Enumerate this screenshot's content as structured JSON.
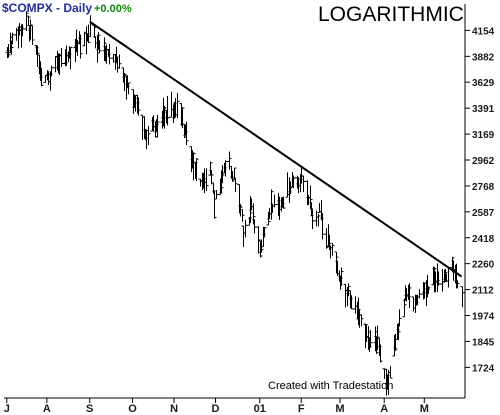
{
  "chart_data": {
    "type": "ohlc",
    "title": "$COMPX - Daily",
    "change": "+0.00%",
    "scale_label": "LOGARITHMIC",
    "credit": "Created with Tradestation",
    "yscale": "log",
    "ylim": [
      1600,
      4450
    ],
    "xlim": [
      "2000-07-01",
      "2001-05-29"
    ],
    "yticks": [
      4154,
      3882,
      3629,
      3391,
      3169,
      2962,
      2768,
      2587,
      2418,
      2260,
      2112,
      1974,
      1845,
      1724
    ],
    "xticks": [
      {
        "label": "J",
        "date": "2000-07-03"
      },
      {
        "label": "A",
        "date": "2000-08-01"
      },
      {
        "label": "S",
        "date": "2000-09-01"
      },
      {
        "label": "O",
        "date": "2000-10-02"
      },
      {
        "label": "N",
        "date": "2000-11-01"
      },
      {
        "label": "D",
        "date": "2000-12-01"
      },
      {
        "label": "01",
        "date": "2001-01-02"
      },
      {
        "label": "F",
        "date": "2001-02-01"
      },
      {
        "label": "M",
        "date": "2001-03-01"
      },
      {
        "label": "A",
        "date": "2001-04-02"
      },
      {
        "label": "M",
        "date": "2001-05-01"
      }
    ],
    "trendline": {
      "start": [
        "2000-09-01",
        4250
      ],
      "end": [
        "2001-05-28",
        2185
      ]
    },
    "anchors": [
      [
        "2000-07-03",
        3960
      ],
      [
        "2000-07-10",
        4050
      ],
      [
        "2000-07-17",
        4250
      ],
      [
        "2000-07-21",
        4150
      ],
      [
        "2000-07-28",
        3700
      ],
      [
        "2000-08-02",
        3650
      ],
      [
        "2000-08-08",
        3840
      ],
      [
        "2000-08-15",
        3880
      ],
      [
        "2000-08-22",
        3980
      ],
      [
        "2000-08-29",
        4080
      ],
      [
        "2000-09-01",
        4230
      ],
      [
        "2000-09-06",
        4000
      ],
      [
        "2000-09-12",
        3900
      ],
      [
        "2000-09-20",
        3850
      ],
      [
        "2000-09-26",
        3650
      ],
      [
        "2000-10-02",
        3500
      ],
      [
        "2000-10-06",
        3400
      ],
      [
        "2000-10-12",
        3150
      ],
      [
        "2000-10-16",
        3300
      ],
      [
        "2000-10-20",
        3200
      ],
      [
        "2000-10-24",
        3350
      ],
      [
        "2000-10-31",
        3400
      ],
      [
        "2000-11-03",
        3450
      ],
      [
        "2000-11-08",
        3250
      ],
      [
        "2000-11-14",
        2950
      ],
      [
        "2000-11-20",
        2800
      ],
      [
        "2000-11-27",
        2900
      ],
      [
        "2000-11-30",
        2650
      ],
      [
        "2000-12-06",
        2850
      ],
      [
        "2000-12-11",
        2950
      ],
      [
        "2000-12-18",
        2700
      ],
      [
        "2000-12-21",
        2450
      ],
      [
        "2000-12-27",
        2600
      ],
      [
        "2001-01-02",
        2330
      ],
      [
        "2001-01-05",
        2450
      ],
      [
        "2001-01-10",
        2650
      ],
      [
        "2001-01-16",
        2600
      ],
      [
        "2001-01-24",
        2780
      ],
      [
        "2001-01-31",
        2820
      ],
      [
        "2001-02-05",
        2700
      ],
      [
        "2001-02-09",
        2550
      ],
      [
        "2001-02-14",
        2580
      ],
      [
        "2001-02-21",
        2400
      ],
      [
        "2001-02-27",
        2200
      ],
      [
        "2001-03-05",
        2100
      ],
      [
        "2001-03-12",
        2000
      ],
      [
        "2001-03-16",
        1950
      ],
      [
        "2001-03-22",
        1850
      ],
      [
        "2001-03-28",
        1850
      ],
      [
        "2001-04-02",
        1720
      ],
      [
        "2001-04-04",
        1650
      ],
      [
        "2001-04-09",
        1800
      ],
      [
        "2001-04-13",
        1950
      ],
      [
        "2001-04-18",
        2100
      ],
      [
        "2001-04-24",
        2050
      ],
      [
        "2001-04-30",
        2120
      ],
      [
        "2001-05-08",
        2150
      ],
      [
        "2001-05-15",
        2180
      ],
      [
        "2001-05-21",
        2220
      ],
      [
        "2001-05-28",
        2100
      ]
    ]
  }
}
